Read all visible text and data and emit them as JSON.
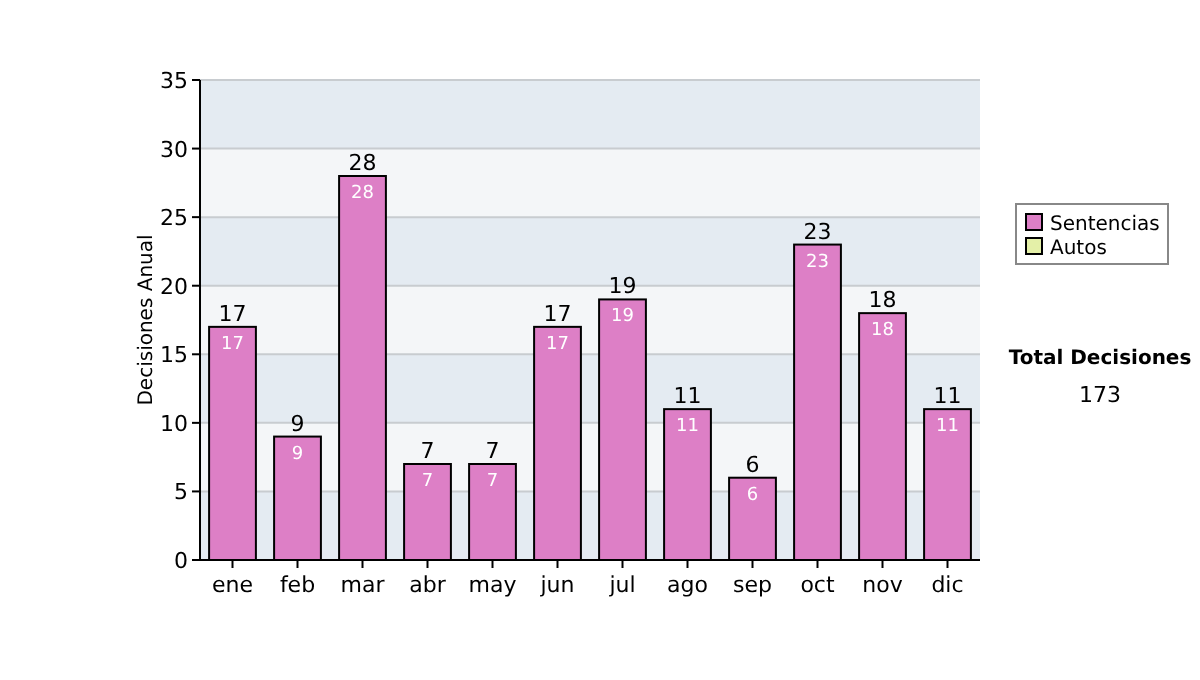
{
  "chart_data": {
    "type": "bar",
    "ylabel": "Decisiones Anual",
    "categories": [
      "ene",
      "feb",
      "mar",
      "abr",
      "may",
      "jun",
      "jul",
      "ago",
      "sep",
      "oct",
      "nov",
      "dic"
    ],
    "series": [
      {
        "name": "Sentencias",
        "color": "#dd7fc6",
        "values": [
          17,
          9,
          28,
          7,
          7,
          17,
          19,
          11,
          6,
          23,
          18,
          11
        ],
        "value_labels": [
          "17",
          "9",
          "28",
          "7",
          "7",
          "17",
          "19",
          "11",
          "6",
          "23",
          "18",
          "11"
        ]
      },
      {
        "name": "Autos",
        "color": "#e4f0a8",
        "values": [
          null,
          null,
          null,
          null,
          null,
          null,
          null,
          null,
          null,
          null,
          null,
          null
        ]
      }
    ],
    "totals": [
      "17",
      "9",
      "28",
      "7",
      "7",
      "17",
      "19",
      "11",
      "6",
      "23",
      "18",
      "11"
    ],
    "ylim": [
      0,
      35
    ],
    "yticks": [
      0,
      5,
      10,
      15,
      20,
      25,
      30,
      35
    ],
    "grid": "y",
    "legend": "right",
    "annotations": [
      "Total Decisiones",
      "173"
    ]
  }
}
